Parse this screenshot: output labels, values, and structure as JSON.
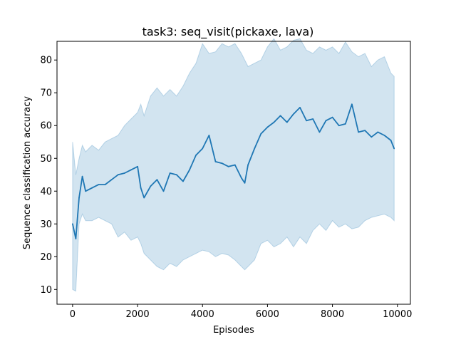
{
  "chart_data": {
    "type": "line",
    "title": "task3: seq_visit(pickaxe, lava)",
    "xlabel": "Episodes",
    "ylabel": "Sequence classification accuracy",
    "xlim": [
      -480,
      10400
    ],
    "ylim": [
      5.5,
      85.7
    ],
    "xticks": [
      0,
      2000,
      4000,
      6000,
      8000,
      10000
    ],
    "yticks": [
      10,
      20,
      30,
      40,
      50,
      60,
      70,
      80
    ],
    "grid": false,
    "colors": {
      "line": "#1f77b4",
      "band": "#1f77b4"
    },
    "series": [
      {
        "x": [
          0,
          100,
          200,
          300,
          400,
          600,
          800,
          1000,
          1200,
          1400,
          1600,
          1800,
          2000,
          2100,
          2200,
          2400,
          2600,
          2800,
          3000,
          3200,
          3400,
          3600,
          3800,
          4000,
          4200,
          4400,
          4600,
          4800,
          5000,
          5200,
          5300,
          5400,
          5600,
          5800,
          6000,
          6200,
          6400,
          6600,
          6800,
          7000,
          7200,
          7400,
          7600,
          7800,
          8000,
          8200,
          8400,
          8600,
          8800,
          9000,
          9200,
          9400,
          9600,
          9800,
          9900
        ],
        "values": [
          30,
          25.5,
          38,
          44.5,
          40,
          41,
          42,
          42,
          43.5,
          45,
          45.5,
          46.5,
          47.5,
          41,
          38,
          41.5,
          43.5,
          40,
          45.5,
          45,
          43,
          46.5,
          51,
          53,
          57,
          49,
          48.5,
          47.5,
          48,
          44,
          42.5,
          48,
          53,
          57.5,
          59.5,
          61,
          63,
          61,
          63.5,
          65.5,
          61.5,
          62,
          58,
          61.5,
          62.5,
          60,
          60.5,
          66.5,
          58,
          58.5,
          56.5,
          58,
          57,
          55.5,
          53
        ],
        "upper": [
          55,
          45,
          50,
          54,
          52,
          54,
          52.5,
          55,
          56,
          57,
          60,
          62,
          64,
          66.5,
          63,
          69,
          71.5,
          69,
          71,
          69,
          72,
          76,
          79,
          85,
          82,
          82.5,
          85,
          84,
          85,
          82,
          80,
          78,
          79,
          80,
          84,
          86.5,
          83,
          84,
          86,
          86.5,
          83,
          82,
          84,
          83,
          84,
          82,
          85.5,
          82.5,
          81,
          82,
          78,
          80,
          81,
          76,
          75
        ],
        "lower": [
          10,
          9.5,
          30,
          33,
          31,
          31,
          32,
          31,
          30,
          26,
          27.5,
          25,
          26,
          24,
          21,
          19,
          17,
          16,
          18,
          17,
          19,
          20,
          21,
          22,
          21.5,
          20,
          21,
          20.5,
          19,
          17,
          16,
          17,
          19,
          24,
          25,
          23,
          24,
          26,
          23,
          26,
          24,
          28,
          30,
          28,
          31,
          29,
          30,
          28.5,
          29,
          31,
          32,
          32.5,
          33,
          32,
          31
        ]
      }
    ]
  }
}
